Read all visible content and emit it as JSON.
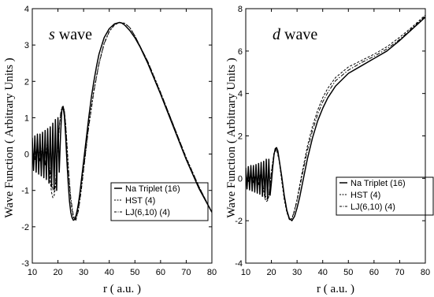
{
  "chart_data": [
    {
      "type": "line",
      "title_italic": "s",
      "title_rest": " wave",
      "xlabel": "r ( a.u. )",
      "ylabel": "Wave Function ( Arbitrary Units )",
      "xlim": [
        10,
        80
      ],
      "ylim": [
        -3,
        4
      ],
      "x_ticks": [
        10,
        20,
        30,
        40,
        50,
        60,
        70,
        80
      ],
      "y_ticks": [
        -3,
        -2,
        -1,
        0,
        1,
        2,
        3,
        4
      ],
      "grid": false,
      "legend_position": "bottom-right",
      "series": [
        {
          "name": "Na Triplet (16)",
          "style": "solid",
          "x": [
            10,
            10.5,
            11,
            11.5,
            12,
            12.5,
            13,
            13.5,
            14,
            14.5,
            15,
            15.5,
            16,
            16.5,
            17,
            17.5,
            18,
            18.5,
            19,
            19.5,
            20,
            20.5,
            21,
            21.5,
            22,
            22.5,
            23,
            23.5,
            24,
            24.5,
            25,
            25.5,
            26,
            26.5,
            27,
            27.5,
            28,
            28.5,
            29,
            30,
            31,
            32,
            33,
            34,
            35,
            36,
            38,
            40,
            42,
            44,
            45,
            46,
            48,
            50,
            52,
            55,
            60,
            65,
            70,
            75,
            80
          ],
          "y": [
            0.45,
            -0.45,
            0.5,
            -0.5,
            0.55,
            -0.55,
            0.55,
            -0.6,
            0.6,
            -0.65,
            0.65,
            -0.7,
            0.7,
            -0.8,
            0.75,
            -0.9,
            0.85,
            -0.95,
            0.95,
            -1.0,
            1.0,
            -0.5,
            0.5,
            1.2,
            1.3,
            1.05,
            0.5,
            -0.2,
            -0.8,
            -1.3,
            -1.6,
            -1.75,
            -1.82,
            -1.8,
            -1.7,
            -1.55,
            -1.35,
            -1.1,
            -0.8,
            -0.2,
            0.4,
            1.0,
            1.55,
            2.0,
            2.4,
            2.75,
            3.2,
            3.45,
            3.58,
            3.62,
            3.6,
            3.55,
            3.4,
            3.2,
            2.95,
            2.5,
            1.65,
            0.75,
            -0.15,
            -0.95,
            -1.6
          ]
        },
        {
          "name": "HST (4)",
          "style": "dashed",
          "x": [
            10,
            11,
            12,
            13,
            14,
            15,
            16,
            17,
            17.5,
            18,
            18.5,
            19,
            19.5,
            20,
            20.5,
            21,
            21.5,
            22,
            22.5,
            23,
            23.5,
            24,
            24.5,
            25,
            26,
            27,
            28,
            29,
            30,
            32,
            34,
            36,
            38,
            40,
            42,
            44,
            46,
            48,
            50,
            55,
            60,
            65,
            70,
            75,
            80
          ],
          "y": [
            0.1,
            -0.1,
            0.15,
            -0.15,
            0.2,
            -0.3,
            0.4,
            -0.75,
            -1.05,
            -1.2,
            -1.15,
            -0.9,
            -0.4,
            0.2,
            0.7,
            1.05,
            1.25,
            1.3,
            1.2,
            0.85,
            0.3,
            -0.3,
            -0.85,
            -1.3,
            -1.75,
            -1.8,
            -1.5,
            -1.0,
            -0.4,
            0.8,
            1.75,
            2.5,
            3.05,
            3.38,
            3.55,
            3.62,
            3.6,
            3.48,
            3.25,
            2.55,
            1.7,
            0.8,
            -0.1,
            -0.9,
            -1.6
          ]
        },
        {
          "name": "LJ(6,10) (4)",
          "style": "dashdot",
          "x": [
            10,
            11,
            12,
            13,
            14,
            15,
            16,
            17,
            18,
            18.5,
            19,
            19.5,
            20,
            20.5,
            21,
            21.5,
            22,
            22.5,
            23,
            23.5,
            24,
            25,
            26,
            27,
            28,
            29,
            30,
            32,
            34,
            36,
            38,
            40,
            42,
            44,
            46,
            48,
            50,
            55,
            60,
            65,
            70,
            75,
            80
          ],
          "y": [
            0.1,
            -0.15,
            0.2,
            -0.2,
            0.25,
            -0.3,
            0.2,
            -0.5,
            -0.95,
            -1.05,
            -0.85,
            -0.35,
            0.25,
            0.75,
            1.1,
            1.28,
            1.32,
            1.2,
            0.8,
            0.25,
            -0.35,
            -1.2,
            -1.7,
            -1.82,
            -1.55,
            -1.05,
            -0.45,
            0.75,
            1.72,
            2.48,
            3.03,
            3.37,
            3.55,
            3.62,
            3.6,
            3.48,
            3.25,
            2.55,
            1.7,
            0.8,
            -0.1,
            -0.9,
            -1.6
          ]
        }
      ]
    },
    {
      "type": "line",
      "title_italic": "d",
      "title_rest": " wave",
      "xlabel": "r ( a.u. )",
      "ylabel": "Wave Function ( Arbitrary Units )",
      "xlim": [
        10,
        80
      ],
      "ylim": [
        -4,
        8
      ],
      "x_ticks": [
        10,
        20,
        30,
        40,
        50,
        60,
        70,
        80
      ],
      "y_ticks": [
        -4,
        -2,
        0,
        2,
        4,
        6,
        8
      ],
      "grid": false,
      "legend_position": "bottom-right",
      "series": [
        {
          "name": "Na Triplet (16)",
          "style": "solid",
          "x": [
            10,
            10.5,
            11,
            11.5,
            12,
            12.5,
            13,
            13.5,
            14,
            14.5,
            15,
            15.5,
            16,
            16.5,
            17,
            17.5,
            18,
            18.5,
            19,
            19.5,
            20,
            20.5,
            21,
            21.5,
            22,
            22.5,
            23,
            24,
            25,
            26,
            27,
            28,
            29,
            30,
            31,
            32,
            34,
            36,
            38,
            40,
            42,
            45,
            50,
            55,
            60,
            65,
            70,
            75,
            80
          ],
          "y": [
            0.5,
            -0.5,
            0.55,
            -0.55,
            0.6,
            -0.6,
            0.6,
            -0.65,
            0.65,
            -0.7,
            0.7,
            -0.75,
            0.75,
            -0.85,
            0.8,
            -0.9,
            0.9,
            -0.95,
            0.9,
            -0.8,
            -0.2,
            0.5,
            1.1,
            1.4,
            1.45,
            1.3,
            0.9,
            0.1,
            -0.8,
            -1.5,
            -1.9,
            -2.0,
            -1.8,
            -1.4,
            -0.9,
            -0.3,
            0.9,
            1.9,
            2.7,
            3.3,
            3.8,
            4.35,
            4.95,
            5.3,
            5.65,
            6.0,
            6.5,
            7.05,
            7.6
          ]
        },
        {
          "name": "HST (4)",
          "style": "dashed",
          "x": [
            10,
            11,
            12,
            13,
            14,
            15,
            16,
            17,
            17.5,
            18,
            18.5,
            19,
            19.5,
            20,
            21,
            22,
            23,
            24,
            25,
            26,
            27,
            28,
            29,
            30,
            32,
            34,
            36,
            38,
            40,
            42,
            45,
            50,
            55,
            60,
            65,
            70,
            75,
            80
          ],
          "y": [
            0.1,
            -0.1,
            0.12,
            -0.15,
            0.2,
            -0.3,
            0.4,
            -0.6,
            -0.95,
            -1.1,
            -1.05,
            -0.85,
            -0.3,
            0.3,
            1.2,
            1.35,
            0.85,
            -0.1,
            -1.0,
            -1.6,
            -1.95,
            -1.9,
            -1.5,
            -1.0,
            0.3,
            1.5,
            2.45,
            3.2,
            3.8,
            4.25,
            4.75,
            5.25,
            5.55,
            5.85,
            6.2,
            6.65,
            7.15,
            7.7
          ]
        },
        {
          "name": "LJ(6,10) (4)",
          "style": "dashdot",
          "x": [
            10,
            11,
            12,
            13,
            14,
            15,
            16,
            17,
            18,
            18.5,
            19,
            19.5,
            20,
            21,
            22,
            23,
            24,
            25,
            26,
            27,
            28,
            29,
            30,
            32,
            34,
            36,
            38,
            40,
            42,
            45,
            50,
            55,
            60,
            65,
            70,
            75,
            80
          ],
          "y": [
            0.1,
            -0.15,
            0.2,
            -0.2,
            0.25,
            -0.3,
            0.25,
            -0.5,
            -0.95,
            -1.0,
            -0.8,
            -0.3,
            0.3,
            1.15,
            1.4,
            0.95,
            0.05,
            -0.9,
            -1.55,
            -1.95,
            -1.9,
            -1.55,
            -1.05,
            0.15,
            1.3,
            2.25,
            3.0,
            3.6,
            4.05,
            4.6,
            5.1,
            5.45,
            5.75,
            6.1,
            6.55,
            7.1,
            7.65
          ]
        }
      ]
    }
  ]
}
